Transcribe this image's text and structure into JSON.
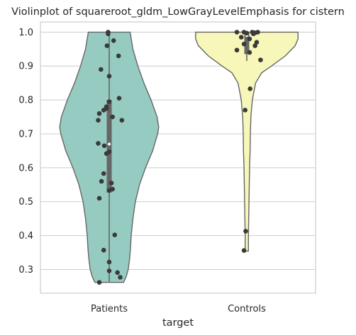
{
  "chart_data": {
    "type": "violin",
    "title": "Violinplot of squareroot_gldm_LowGrayLevelEmphasis for cistern",
    "xlabel": "target",
    "ylabel": "",
    "categories": [
      "Patients",
      "Controls"
    ],
    "ylim": [
      0.23,
      1.03
    ],
    "yticks": [
      0.3,
      0.4,
      0.5,
      0.6,
      0.7,
      0.8,
      0.9,
      1.0
    ],
    "ytick_labels": [
      "0.3",
      "0.4",
      "0.5",
      "0.6",
      "0.7",
      "0.8",
      "0.9",
      "1.0"
    ],
    "grid": true,
    "colors": {
      "Patients": "#96cbc1",
      "Controls": "#f7f7b9",
      "outline": "#666666",
      "points": "#3a3a3a",
      "box": "#666666"
    },
    "violins": [
      {
        "name": "Patients",
        "profile": [
          [
            0.262,
            0.26
          ],
          [
            0.265,
            0.27
          ],
          [
            0.28,
            0.31
          ],
          [
            0.3,
            0.345
          ],
          [
            0.33,
            0.37
          ],
          [
            0.36,
            0.385
          ],
          [
            0.4,
            0.4
          ],
          [
            0.45,
            0.43
          ],
          [
            0.5,
            0.475
          ],
          [
            0.55,
            0.55
          ],
          [
            0.6,
            0.66
          ],
          [
            0.65,
            0.79
          ],
          [
            0.7,
            0.88
          ],
          [
            0.72,
            0.9
          ],
          [
            0.75,
            0.87
          ],
          [
            0.8,
            0.76
          ],
          [
            0.85,
            0.63
          ],
          [
            0.9,
            0.52
          ],
          [
            0.95,
            0.43
          ],
          [
            1.0,
            0.38
          ]
        ],
        "box": {
          "q1": 0.527,
          "median": 0.67,
          "q3": 0.8,
          "whisker_low": 0.262,
          "whisker_high": 1.0
        },
        "points": [
          [
            -0.02,
            1.0
          ],
          [
            -0.02,
            0.995
          ],
          [
            0.08,
            0.975
          ],
          [
            -0.04,
            0.96
          ],
          [
            0.17,
            0.93
          ],
          [
            -0.15,
            0.89
          ],
          [
            0.0,
            0.87
          ],
          [
            0.18,
            0.805
          ],
          [
            0.0,
            0.795
          ],
          [
            -0.05,
            0.78
          ],
          [
            -0.1,
            0.77
          ],
          [
            -0.05,
            0.775
          ],
          [
            -0.18,
            0.76
          ],
          [
            0.06,
            0.75
          ],
          [
            -0.2,
            0.74
          ],
          [
            0.23,
            0.74
          ],
          [
            -0.2,
            0.672
          ],
          [
            -0.09,
            0.665
          ],
          [
            0.0,
            0.647
          ],
          [
            -0.05,
            0.642
          ],
          [
            -0.1,
            0.583
          ],
          [
            -0.14,
            0.56
          ],
          [
            0.04,
            0.555
          ],
          [
            0.06,
            0.537
          ],
          [
            0.0,
            0.533
          ],
          [
            -0.18,
            0.51
          ],
          [
            0.1,
            0.402
          ],
          [
            -0.1,
            0.357
          ],
          [
            0.0,
            0.322
          ],
          [
            0.0,
            0.296
          ],
          [
            0.15,
            0.291
          ],
          [
            0.2,
            0.277
          ],
          [
            -0.18,
            0.262
          ]
        ]
      },
      {
        "name": "Controls",
        "profile": [
          [
            0.354,
            0.03
          ],
          [
            0.4,
            0.03
          ],
          [
            0.45,
            0.035
          ],
          [
            0.5,
            0.04
          ],
          [
            0.55,
            0.045
          ],
          [
            0.6,
            0.05
          ],
          [
            0.65,
            0.06
          ],
          [
            0.7,
            0.065
          ],
          [
            0.75,
            0.075
          ],
          [
            0.8,
            0.1
          ],
          [
            0.85,
            0.16
          ],
          [
            0.88,
            0.27
          ],
          [
            0.9,
            0.45
          ],
          [
            0.93,
            0.7
          ],
          [
            0.96,
            0.88
          ],
          [
            0.98,
            0.93
          ],
          [
            1.0,
            0.93
          ]
        ],
        "box": {
          "q1": 0.935,
          "median": 0.99,
          "q3": 1.0,
          "whisker_low": 0.915,
          "whisker_high": 1.0
        },
        "points": [
          [
            -0.18,
            1.0
          ],
          [
            -0.05,
            1.0
          ],
          [
            0.0,
            0.997
          ],
          [
            0.1,
            1.0
          ],
          [
            0.15,
            0.998
          ],
          [
            0.2,
            1.0
          ],
          [
            0.12,
            0.995
          ],
          [
            -0.1,
            0.985
          ],
          [
            0.05,
            0.98
          ],
          [
            0.18,
            0.97
          ],
          [
            0.15,
            0.96
          ],
          [
            -0.05,
            0.965
          ],
          [
            -0.18,
            0.947
          ],
          [
            0.05,
            0.94
          ],
          [
            0.25,
            0.918
          ],
          [
            0.06,
            0.833
          ],
          [
            -0.03,
            0.77
          ],
          [
            -0.02,
            0.413
          ],
          [
            -0.05,
            0.356
          ]
        ]
      }
    ]
  }
}
